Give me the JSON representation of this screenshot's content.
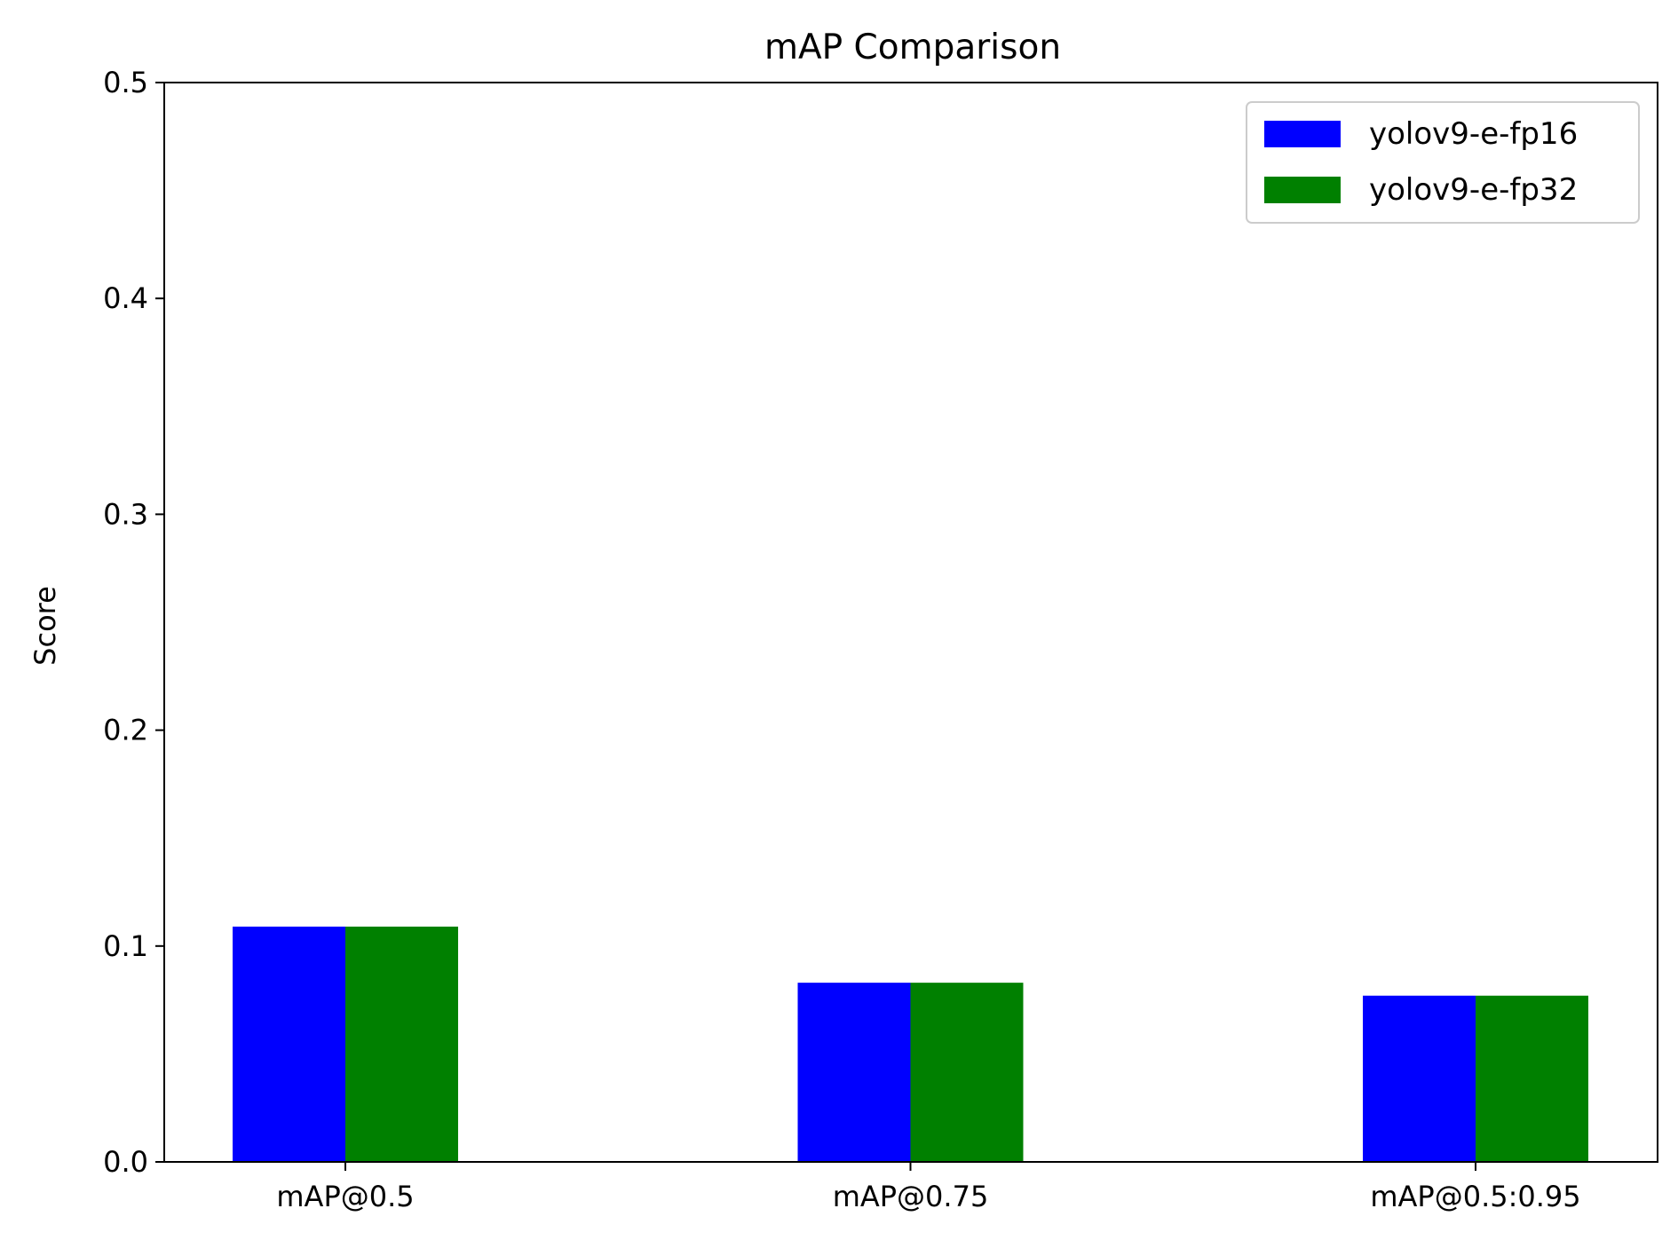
{
  "chart_data": {
    "type": "bar",
    "title": "mAP Comparison",
    "xlabel": "",
    "ylabel": "Score",
    "categories": [
      "mAP@0.5",
      "mAP@0.75",
      "mAP@0.5:0.95"
    ],
    "series": [
      {
        "name": "yolov9-e-fp16",
        "color": "#0000ff",
        "values": [
          0.109,
          0.083,
          0.077
        ]
      },
      {
        "name": "yolov9-e-fp32",
        "color": "#008000",
        "values": [
          0.109,
          0.083,
          0.077
        ]
      }
    ],
    "ylim": [
      0,
      0.5
    ],
    "yticks": [
      "0.0",
      "0.1",
      "0.2",
      "0.3",
      "0.4",
      "0.5"
    ],
    "grid": false,
    "legend_position": "top-right"
  }
}
